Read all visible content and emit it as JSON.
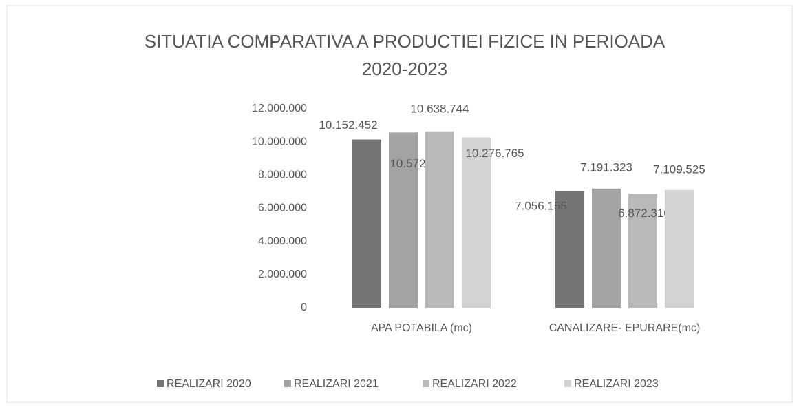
{
  "chart_data": {
    "type": "bar",
    "title": "SITUATIA COMPARATIVA A PRODUCTIEI FIZICE IN PERIOADA 2020-2023",
    "categories": [
      "APA POTABILA (mc)",
      "CANALIZARE- EPURARE(mc)"
    ],
    "series": [
      {
        "name": "REALIZARI 2020",
        "color": "#757575",
        "values": [
          10152452,
          7056155
        ],
        "value_labels": [
          "10.152.452",
          "7.056.155"
        ]
      },
      {
        "name": "REALIZARI 2021",
        "color": "#a3a3a3",
        "values": [
          10572847,
          7191323
        ],
        "value_labels": [
          "10.572.847",
          "7.191.323"
        ]
      },
      {
        "name": "REALIZARI 2022",
        "color": "#b9b9b9",
        "values": [
          10638744,
          6872310
        ],
        "value_labels": [
          "10.638.744",
          "6.872.310"
        ]
      },
      {
        "name": "REALIZARI 2023",
        "color": "#d3d3d3",
        "values": [
          10276765,
          7109525
        ],
        "value_labels": [
          "10.276.765",
          "7.109.525"
        ]
      }
    ],
    "ylim": [
      0,
      12000000
    ],
    "yticks": [
      0,
      {
        "value": 2000000,
        "label": "2.000.000"
      },
      {
        "value": 4000000,
        "label": "4.000.000"
      },
      {
        "value": 6000000,
        "label": "6.000.000"
      },
      {
        "value": 8000000,
        "label": "8.000.000"
      },
      {
        "value": 10000000,
        "label": "10.000.000"
      },
      {
        "value": 12000000,
        "label": "12.000.000"
      }
    ],
    "legend": "bottom"
  }
}
